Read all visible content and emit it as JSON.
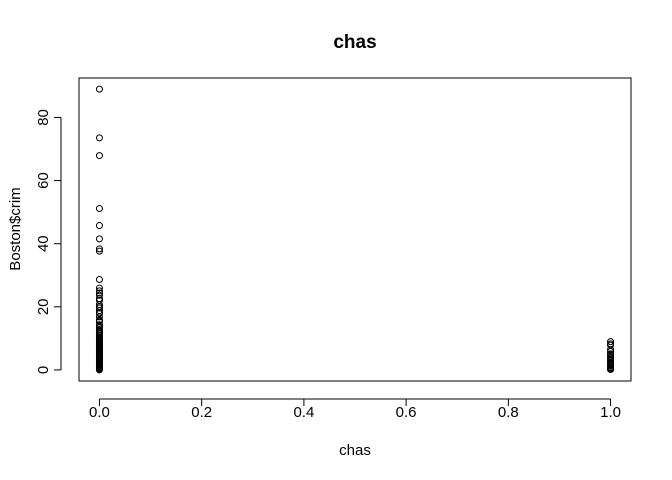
{
  "chart_data": {
    "type": "scatter",
    "title": "chas",
    "xlabel": "chas",
    "ylabel": "Boston$crim",
    "xlim": [
      -0.04,
      1.04
    ],
    "ylim": [
      -3.5,
      92.5
    ],
    "x_ticks": [
      0.0,
      0.2,
      0.4,
      0.6,
      0.8,
      1.0
    ],
    "x_tick_labels": [
      "0.0",
      "0.2",
      "0.4",
      "0.6",
      "0.8",
      "1.0"
    ],
    "y_ticks": [
      0,
      20,
      40,
      60,
      80
    ],
    "y_tick_labels": [
      "0",
      "20",
      "40",
      "60",
      "80"
    ],
    "grid": false,
    "legend": "none",
    "marker": "open-circle",
    "series": [
      {
        "x": [
          0,
          0,
          0,
          0,
          0,
          0,
          0,
          0,
          0,
          0,
          0,
          0,
          0,
          0,
          0,
          0,
          0,
          0,
          0,
          0,
          0,
          0,
          0,
          0,
          0,
          0,
          0,
          0,
          0,
          0,
          0,
          0,
          0,
          0,
          0,
          0,
          0,
          0,
          0,
          0,
          0,
          0,
          0,
          0,
          0,
          0,
          0,
          0,
          0,
          0,
          0,
          0,
          0,
          0,
          0,
          0,
          0,
          0,
          0,
          0,
          0,
          0,
          0,
          0,
          0,
          0,
          0,
          0,
          0,
          0,
          0,
          0,
          0,
          0,
          0,
          0,
          0,
          0,
          0,
          0,
          0,
          0,
          0,
          0,
          0,
          1,
          1,
          1,
          1,
          1,
          1,
          1,
          1,
          1,
          1,
          1,
          1,
          1,
          1,
          1,
          1,
          1,
          1,
          1,
          1
        ],
        "y": [
          88.98,
          73.53,
          67.92,
          51.14,
          45.75,
          41.53,
          38.35,
          37.66,
          28.66,
          25.94,
          25.05,
          24.39,
          23.65,
          22.6,
          22.05,
          20.72,
          20.08,
          19.61,
          18.81,
          18.08,
          17.87,
          16.81,
          15.87,
          15.58,
          15.29,
          14.33,
          14.24,
          13.91,
          13.36,
          12.8,
          12.25,
          11.95,
          11.58,
          11.11,
          10.83,
          10.23,
          9.92,
          9.59,
          9.34,
          9.18,
          8.98,
          8.79,
          8.64,
          8.26,
          8.05,
          7.84,
          7.67,
          7.4,
          7.05,
          6.8,
          6.65,
          6.44,
          6.29,
          5.87,
          5.82,
          5.69,
          5.66,
          5.44,
          5.29,
          4.87,
          4.84,
          4.66,
          4.55,
          4.42,
          4.22,
          4.1,
          3.85,
          3.7,
          3.47,
          3.32,
          2.92,
          2.73,
          2.45,
          2.31,
          2.15,
          1.83,
          1.62,
          1.35,
          1.23,
          1.0,
          0.79,
          0.5,
          0.32,
          0.12,
          0.03,
          8.98,
          8.27,
          7.84,
          6.45,
          5.82,
          5.09,
          4.84,
          4.32,
          3.85,
          3.47,
          2.92,
          2.45,
          2.15,
          1.83,
          1.51,
          1.23,
          0.79,
          0.62,
          0.32,
          0.12
        ]
      }
    ]
  }
}
